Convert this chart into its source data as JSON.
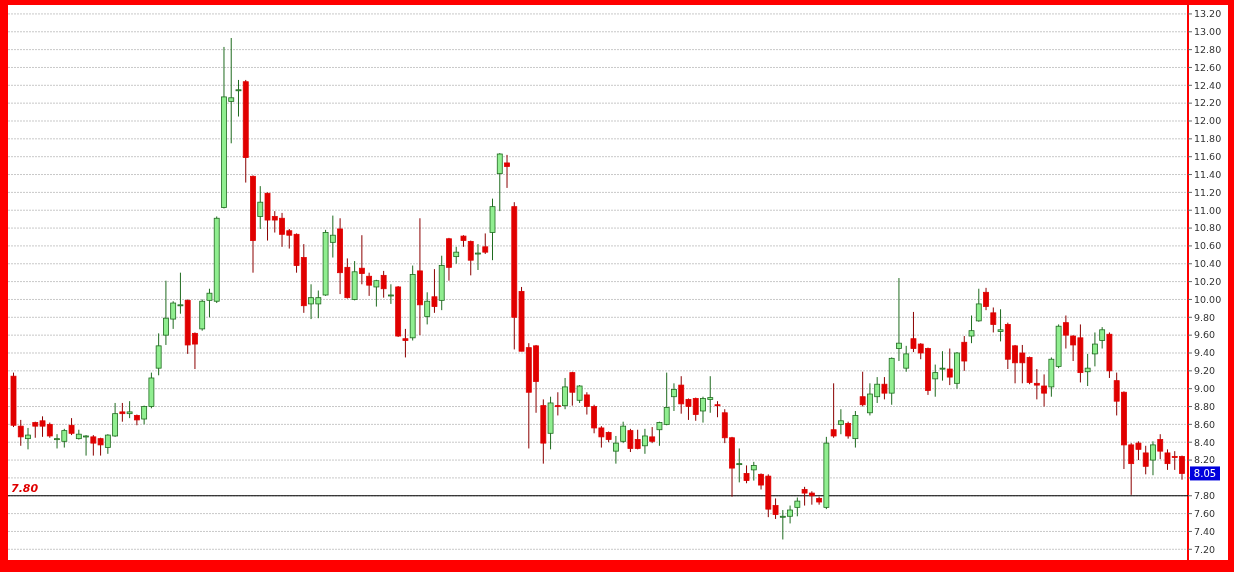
{
  "chart_data": {
    "type": "candlestick",
    "categories": [
      null,
      null,
      null,
      null,
      null,
      null,
      null,
      null,
      null,
      null,
      null,
      null,
      null,
      null,
      null,
      null,
      null,
      null,
      null,
      null,
      null,
      null,
      null,
      null,
      null,
      null,
      null,
      null,
      null,
      null,
      null,
      null,
      null,
      null,
      null,
      null,
      null,
      null,
      null,
      null,
      null,
      null,
      null,
      null,
      null,
      null,
      null,
      null,
      null,
      null,
      null,
      null,
      null,
      null,
      null,
      null,
      null,
      null,
      null,
      null,
      null,
      null,
      null,
      null,
      null,
      null,
      null,
      null,
      null,
      null,
      null,
      null,
      null,
      null,
      null,
      null,
      null,
      null,
      null,
      null,
      null,
      null,
      null,
      null,
      null,
      null,
      null,
      null,
      null,
      null,
      null,
      null,
      null,
      null,
      null,
      null,
      null,
      null,
      null,
      null,
      null,
      null,
      null,
      null,
      null,
      null,
      null,
      null,
      null,
      null,
      null,
      null,
      null,
      null,
      null,
      null,
      null,
      null,
      null,
      null,
      null,
      null,
      null,
      null,
      null,
      null,
      null,
      null,
      null,
      null,
      null,
      null,
      null,
      null,
      null,
      null,
      null,
      null,
      null,
      null,
      null,
      null,
      null,
      null,
      null,
      null,
      null,
      null,
      null,
      null,
      null,
      null,
      null,
      null,
      null,
      null,
      null,
      null,
      null,
      null,
      null,
      null
    ],
    "ohlc": [
      [
        9.14,
        9.18,
        8.57,
        8.59
      ],
      [
        8.58,
        8.65,
        8.36,
        8.46
      ],
      [
        8.44,
        8.56,
        8.32,
        8.48
      ],
      [
        8.62,
        8.63,
        8.45,
        8.58
      ],
      [
        8.64,
        8.69,
        8.46,
        8.58
      ],
      [
        8.6,
        8.62,
        8.45,
        8.47
      ],
      [
        8.43,
        8.49,
        8.33,
        8.44
      ],
      [
        8.41,
        8.55,
        8.34,
        8.53
      ],
      [
        8.59,
        8.67,
        8.48,
        8.5
      ],
      [
        8.44,
        8.54,
        8.43,
        8.49
      ],
      [
        8.46,
        8.48,
        8.25,
        8.47
      ],
      [
        8.46,
        8.48,
        8.25,
        8.39
      ],
      [
        8.44,
        8.45,
        8.25,
        8.37
      ],
      [
        8.34,
        8.49,
        8.27,
        8.48
      ],
      [
        8.47,
        8.84,
        8.46,
        8.72
      ],
      [
        8.74,
        8.84,
        8.63,
        8.72
      ],
      [
        8.72,
        8.86,
        8.67,
        8.74
      ],
      [
        8.7,
        8.71,
        8.59,
        8.65
      ],
      [
        8.66,
        8.81,
        8.6,
        8.8
      ],
      [
        8.8,
        9.18,
        8.78,
        9.12
      ],
      [
        9.23,
        9.62,
        9.15,
        9.48
      ],
      [
        9.6,
        10.21,
        9.49,
        9.79
      ],
      [
        9.78,
        9.98,
        9.67,
        9.96
      ],
      [
        9.94,
        10.3,
        9.84,
        9.94
      ],
      [
        9.99,
        10,
        9.39,
        9.49
      ],
      [
        9.62,
        9.63,
        9.22,
        9.5
      ],
      [
        9.67,
        10,
        9.65,
        9.98
      ],
      [
        9.99,
        10.12,
        9.8,
        10.07
      ],
      [
        9.98,
        10.93,
        9.96,
        10.91
      ],
      [
        11.03,
        12.83,
        11.02,
        12.27
      ],
      [
        12.22,
        12.93,
        11.75,
        12.26
      ],
      [
        12.35,
        12.46,
        12.05,
        12.35
      ],
      [
        12.44,
        12.46,
        11.31,
        11.59
      ],
      [
        11.38,
        11.39,
        10.3,
        10.66
      ],
      [
        10.93,
        11.27,
        10.79,
        11.09
      ],
      [
        11.19,
        11.2,
        10.66,
        10.89
      ],
      [
        10.93,
        10.99,
        10.75,
        10.89
      ],
      [
        10.91,
        10.97,
        10.59,
        10.73
      ],
      [
        10.77,
        10.79,
        10.57,
        10.72
      ],
      [
        10.73,
        10.74,
        10.3,
        10.38
      ],
      [
        10.47,
        10.62,
        9.85,
        9.93
      ],
      [
        9.95,
        10.17,
        9.78,
        10.02
      ],
      [
        9.95,
        10.1,
        9.79,
        10.02
      ],
      [
        10.05,
        10.78,
        10.04,
        10.75
      ],
      [
        10.64,
        10.94,
        10.47,
        10.72
      ],
      [
        10.79,
        10.91,
        10.06,
        10.3
      ],
      [
        10.36,
        10.46,
        10.01,
        10.02
      ],
      [
        10,
        10.43,
        9.99,
        10.31
      ],
      [
        10.35,
        10.72,
        10.17,
        10.29
      ],
      [
        10.26,
        10.3,
        10.04,
        10.16
      ],
      [
        10.14,
        10.22,
        9.92,
        10.21
      ],
      [
        10.27,
        10.32,
        10.02,
        10.12
      ],
      [
        10.05,
        10.17,
        9.95,
        10.05
      ],
      [
        10.14,
        10.15,
        9.58,
        9.59
      ],
      [
        9.56,
        9.67,
        9.35,
        9.54
      ],
      [
        9.57,
        10.38,
        9.54,
        10.28
      ],
      [
        10.32,
        10.91,
        9.6,
        9.94
      ],
      [
        9.81,
        10.08,
        9.72,
        9.98
      ],
      [
        10.03,
        10.34,
        9.85,
        9.92
      ],
      [
        9.99,
        10.49,
        9.88,
        10.38
      ],
      [
        10.68,
        10.69,
        10.21,
        10.36
      ],
      [
        10.48,
        10.59,
        10.4,
        10.53
      ],
      [
        10.71,
        10.72,
        10.59,
        10.66
      ],
      [
        10.65,
        10.66,
        10.27,
        10.44
      ],
      [
        10.51,
        10.62,
        10.33,
        10.52
      ],
      [
        10.59,
        10.74,
        10.51,
        10.53
      ],
      [
        10.75,
        11.13,
        10.44,
        11.04
      ],
      [
        11.41,
        11.64,
        10.99,
        11.63
      ],
      [
        11.53,
        11.62,
        11.25,
        11.49
      ],
      [
        11.04,
        11.09,
        9.44,
        9.8
      ],
      [
        10.09,
        10.14,
        9.42,
        9.42
      ],
      [
        9.46,
        9.51,
        8.33,
        8.96
      ],
      [
        9.48,
        9.49,
        8.73,
        9.08
      ],
      [
        8.81,
        8.88,
        8.16,
        8.39
      ],
      [
        8.5,
        8.91,
        8.32,
        8.84
      ],
      [
        8.81,
        8.96,
        8.7,
        8.8
      ],
      [
        8.81,
        9.12,
        8.77,
        9.02
      ],
      [
        9.18,
        9.19,
        8.81,
        8.96
      ],
      [
        8.87,
        9.04,
        8.84,
        9.03
      ],
      [
        8.93,
        8.96,
        8.71,
        8.8
      ],
      [
        8.8,
        8.82,
        8.5,
        8.56
      ],
      [
        8.56,
        8.58,
        8.34,
        8.46
      ],
      [
        8.51,
        8.52,
        8.4,
        8.43
      ],
      [
        8.3,
        8.47,
        8.16,
        8.39
      ],
      [
        8.41,
        8.63,
        8.39,
        8.58
      ],
      [
        8.53,
        8.55,
        8.29,
        8.33
      ],
      [
        8.43,
        8.54,
        8.32,
        8.33
      ],
      [
        8.36,
        8.55,
        8.27,
        8.47
      ],
      [
        8.46,
        8.57,
        8.39,
        8.41
      ],
      [
        8.54,
        8.63,
        8.36,
        8.62
      ],
      [
        8.6,
        9.18,
        8.59,
        8.79
      ],
      [
        8.91,
        9.06,
        8.75,
        8.99
      ],
      [
        9.04,
        9.14,
        8.72,
        8.83
      ],
      [
        8.88,
        8.89,
        8.65,
        8.8
      ],
      [
        8.89,
        8.9,
        8.64,
        8.71
      ],
      [
        8.75,
        8.91,
        8.62,
        8.89
      ],
      [
        8.88,
        9.14,
        8.73,
        8.9
      ],
      [
        8.82,
        8.86,
        8.68,
        8.81
      ],
      [
        8.73,
        8.77,
        8.39,
        8.45
      ],
      [
        8.45,
        8.46,
        7.79,
        8.11
      ],
      [
        8.16,
        8.33,
        7.95,
        8.16
      ],
      [
        8.05,
        8.14,
        7.94,
        7.97
      ],
      [
        8.09,
        8.18,
        7.97,
        8.14
      ],
      [
        8.04,
        8.05,
        7.87,
        7.92
      ],
      [
        8.02,
        8.04,
        7.56,
        7.65
      ],
      [
        7.69,
        7.77,
        7.54,
        7.59
      ],
      [
        7.57,
        7.64,
        7.31,
        7.57
      ],
      [
        7.57,
        7.69,
        7.49,
        7.64
      ],
      [
        7.67,
        7.78,
        7.57,
        7.74
      ],
      [
        7.87,
        7.9,
        7.69,
        7.83
      ],
      [
        7.83,
        7.85,
        7.7,
        7.8
      ],
      [
        7.77,
        7.79,
        7.7,
        7.73
      ],
      [
        7.67,
        8.46,
        7.65,
        8.39
      ],
      [
        8.54,
        9.06,
        8.45,
        8.47
      ],
      [
        8.6,
        8.77,
        8.49,
        8.64
      ],
      [
        8.61,
        8.63,
        8.44,
        8.47
      ],
      [
        8.44,
        8.75,
        8.34,
        8.7
      ],
      [
        8.91,
        9.19,
        8.8,
        8.82
      ],
      [
        8.73,
        9.06,
        8.7,
        8.94
      ],
      [
        8.91,
        9.13,
        8.84,
        9.05
      ],
      [
        9.05,
        9.13,
        8.88,
        8.95
      ],
      [
        8.95,
        9.35,
        8.82,
        9.34
      ],
      [
        9.45,
        10.24,
        9.31,
        9.51
      ],
      [
        9.23,
        9.48,
        9.19,
        9.39
      ],
      [
        9.56,
        9.86,
        9.41,
        9.45
      ],
      [
        9.5,
        9.51,
        9.33,
        9.4
      ],
      [
        9.45,
        9.46,
        8.93,
        8.98
      ],
      [
        9.11,
        9.27,
        8.91,
        9.18
      ],
      [
        9.23,
        9.42,
        9.09,
        9.23
      ],
      [
        9.22,
        9.45,
        9.04,
        9.13
      ],
      [
        9.06,
        9.41,
        9,
        9.4
      ],
      [
        9.52,
        9.59,
        9.2,
        9.31
      ],
      [
        9.59,
        9.82,
        9.51,
        9.65
      ],
      [
        9.76,
        10.12,
        9.75,
        9.95
      ],
      [
        10.08,
        10.13,
        9.88,
        9.92
      ],
      [
        9.85,
        9.91,
        9.63,
        9.72
      ],
      [
        9.64,
        9.89,
        9.53,
        9.66
      ],
      [
        9.72,
        9.74,
        9.22,
        9.33
      ],
      [
        9.48,
        9.49,
        9.06,
        9.29
      ],
      [
        9.4,
        9.49,
        9.06,
        9.29
      ],
      [
        9.35,
        9.36,
        9.05,
        9.07
      ],
      [
        9.06,
        9.22,
        8.88,
        9.04
      ],
      [
        9.03,
        9.16,
        8.8,
        8.95
      ],
      [
        9.02,
        9.35,
        8.91,
        9.33
      ],
      [
        9.25,
        9.72,
        9.23,
        9.7
      ],
      [
        9.74,
        9.82,
        9.45,
        9.6
      ],
      [
        9.59,
        9.6,
        9.31,
        9.49
      ],
      [
        9.57,
        9.72,
        9.07,
        9.18
      ],
      [
        9.19,
        9.39,
        9.03,
        9.23
      ],
      [
        9.39,
        9.63,
        9.25,
        9.5
      ],
      [
        9.54,
        9.69,
        9.45,
        9.66
      ],
      [
        9.61,
        9.63,
        9.12,
        9.2
      ],
      [
        9.09,
        9.18,
        8.7,
        8.86
      ],
      [
        8.96,
        8.97,
        8.1,
        8.37
      ],
      [
        8.37,
        8.39,
        7.81,
        8.16
      ],
      [
        8.39,
        8.41,
        8.2,
        8.32
      ],
      [
        8.28,
        8.36,
        8.04,
        8.13
      ],
      [
        8.2,
        8.41,
        8.03,
        8.37
      ],
      [
        8.43,
        8.49,
        8.21,
        8.3
      ],
      [
        8.28,
        8.32,
        8.09,
        8.16
      ],
      [
        8.24,
        8.3,
        8.09,
        8.23
      ],
      [
        8.24,
        8.25,
        7.98,
        8.05
      ]
    ],
    "ylim": [
      7.08,
      13.3
    ],
    "yticks": [
      {
        "value": 7.2,
        "label": "7.20"
      },
      {
        "value": 7.4,
        "label": "7.40"
      },
      {
        "value": 7.6,
        "label": "7.60"
      },
      {
        "value": 7.8,
        "label": "7.80"
      },
      {
        "value": 8,
        "label": null
      },
      {
        "value": 8.2,
        "label": "8.20"
      },
      {
        "value": 8.4,
        "label": "8.40"
      },
      {
        "value": 8.6,
        "label": "8.60"
      },
      {
        "value": 8.8,
        "label": "8.80"
      },
      {
        "value": 9,
        "label": "9.00"
      },
      {
        "value": 9.2,
        "label": "9.20"
      },
      {
        "value": 9.4,
        "label": "9.40"
      },
      {
        "value": 9.6,
        "label": "9.60"
      },
      {
        "value": 9.8,
        "label": "9.80"
      },
      {
        "value": 10,
        "label": "10.00"
      },
      {
        "value": 10.2,
        "label": "10.20"
      },
      {
        "value": 10.4,
        "label": "10.40"
      },
      {
        "value": 10.6,
        "label": "10.60"
      },
      {
        "value": 10.8,
        "label": "10.80"
      },
      {
        "value": 11,
        "label": "11.00"
      },
      {
        "value": 11.2,
        "label": "11.20"
      },
      {
        "value": 11.4,
        "label": "11.40"
      },
      {
        "value": 11.6,
        "label": "11.60"
      },
      {
        "value": 11.8,
        "label": "11.80"
      },
      {
        "value": 12,
        "label": "12.00"
      },
      {
        "value": 12.2,
        "label": "12.20"
      },
      {
        "value": 12.4,
        "label": "12.40"
      },
      {
        "value": 12.6,
        "label": "12.60"
      },
      {
        "value": 12.8,
        "label": "12.80"
      },
      {
        "value": 13,
        "label": "13.00"
      },
      {
        "value": 13.2,
        "label": "13.20"
      }
    ],
    "grid": "y",
    "ref_lines": [
      {
        "axis": "y",
        "value": 7.8,
        "label": "7.80",
        "color": "#000000"
      }
    ],
    "annotations": [
      {
        "text": "8.05",
        "y": 8.05
      }
    ]
  }
}
